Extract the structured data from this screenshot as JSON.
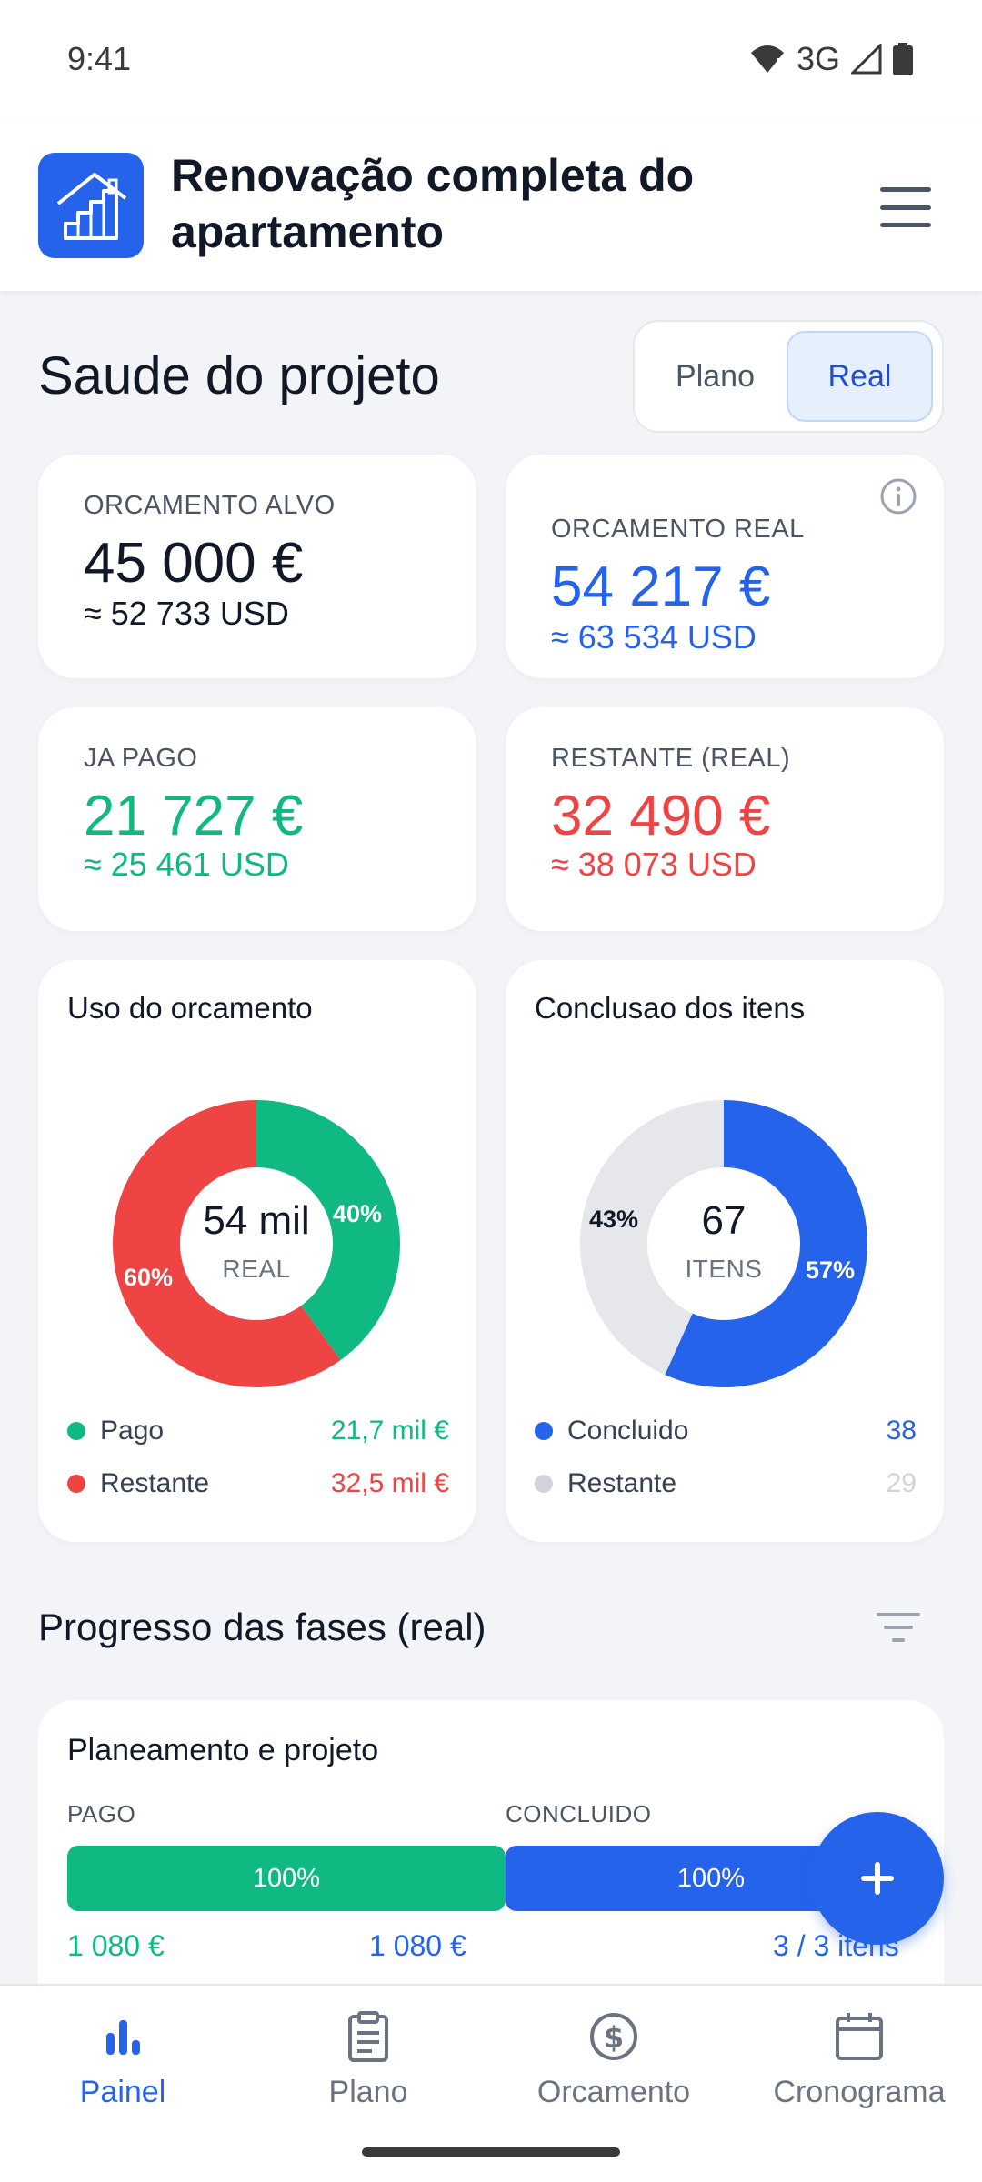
{
  "status": {
    "time": "9:41",
    "network": "3G"
  },
  "app": {
    "title": "Renovação completa do apartamento"
  },
  "health": {
    "title": "Saude do projeto",
    "toggle": {
      "plan_label": "Plano",
      "real_label": "Real",
      "selected": "Real"
    }
  },
  "kpis": {
    "target": {
      "label": "ORCAMENTO ALVO",
      "value": "45 000 €",
      "usd": "≈ 52 733 USD"
    },
    "real": {
      "label": "ORCAMENTO REAL",
      "value": "54 217 €",
      "usd": "≈ 63 534 USD"
    },
    "paid": {
      "label": "JA PAGO",
      "value": "21 727 €",
      "usd": "≈ 25 461 USD"
    },
    "remaining": {
      "label": "RESTANTE (REAL)",
      "value": "32 490 €",
      "usd": "≈ 38 073 USD"
    }
  },
  "budget_chart": {
    "title": "Uso do orcamento",
    "center_value": "54 mil",
    "center_label": "REAL",
    "legend": [
      {
        "name": "Pago",
        "value": "21,7 mil €",
        "color": "#10b981"
      },
      {
        "name": "Restante",
        "value": "32,5 mil €",
        "color": "#ef4444"
      }
    ],
    "paid_pct_label": "40%",
    "remaining_pct_label": "60%"
  },
  "items_chart": {
    "title": "Conclusao dos itens",
    "center_value": "67",
    "center_label": "ITENS",
    "legend": [
      {
        "name": "Concluido",
        "value": "38",
        "color": "#2563eb"
      },
      {
        "name": "Restante",
        "value": "29",
        "color": "#e5e7eb"
      }
    ],
    "done_pct_label": "57%",
    "remaining_pct_label": "43%"
  },
  "chart_data": [
    {
      "type": "pie",
      "title": "Uso do orcamento",
      "categories": [
        "Pago",
        "Restante"
      ],
      "values": [
        21.7,
        32.5
      ],
      "unit": "mil €",
      "colors": [
        "#10b981",
        "#ef4444"
      ]
    },
    {
      "type": "pie",
      "title": "Conclusao dos itens",
      "categories": [
        "Concluido",
        "Restante"
      ],
      "values": [
        38,
        29
      ],
      "colors": [
        "#2563eb",
        "#e5e7eb"
      ]
    }
  ],
  "phases": {
    "title": "Progresso das fases (real)",
    "items": [
      {
        "name": "Planeamento e projeto",
        "paid_label": "PAGO",
        "paid_pct": "100%",
        "paid_fraction": 1.0,
        "paid_amount": "1 080 €",
        "paid_total": "1 080 €",
        "done_label": "CONCLUIDO",
        "done_pct": "100%",
        "done_fraction": 1.0,
        "done_items": "3 / 3 itens"
      }
    ]
  },
  "nav": {
    "items": [
      {
        "label": "Painel",
        "icon": "bar-chart-icon",
        "active": true
      },
      {
        "label": "Plano",
        "icon": "clipboard-icon",
        "active": false
      },
      {
        "label": "Orcamento",
        "icon": "dollar-circle-icon",
        "active": false
      },
      {
        "label": "Cronograma",
        "icon": "calendar-icon",
        "active": false
      }
    ]
  },
  "colors": {
    "primary": "#2563eb",
    "green": "#10b981",
    "red": "#ef4444",
    "gray_track": "#e5e7eb"
  }
}
